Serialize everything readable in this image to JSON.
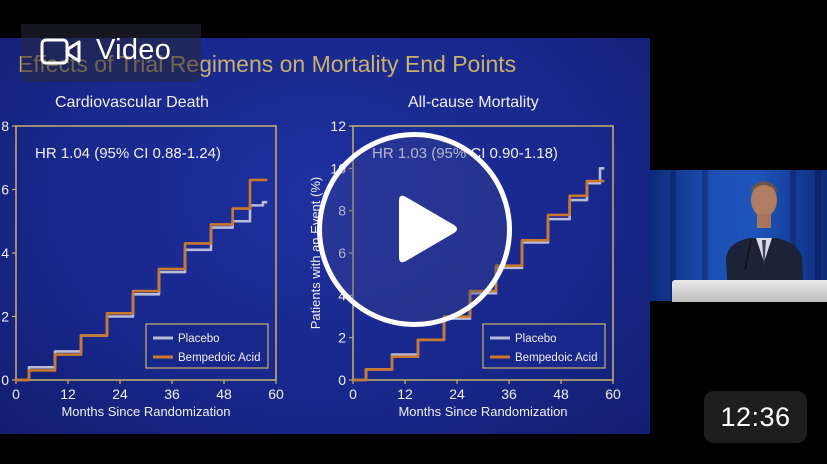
{
  "badge": {
    "label": "Video",
    "icon": "video-camera-icon"
  },
  "duration": "12:36",
  "slide": {
    "title": "Effects of Trial Regimens on Mortality End Points",
    "charts": [
      {
        "title": "Cardiovascular Death",
        "hr": "HR 1.04 (95% CI 0.88-1.24)",
        "ylabel": "",
        "xlabel": "Months Since Randomization",
        "yticks": [
          "8",
          "6",
          "4",
          "2",
          "0"
        ],
        "xticks": [
          "0",
          "12",
          "24",
          "36",
          "48",
          "60"
        ],
        "legend": [
          "Placebo",
          "Bempedoic Acid"
        ]
      },
      {
        "title": "All-cause Mortality",
        "hr": "HR 1.03 (95% CI 0.90-1.18)",
        "ylabel": "Patients with an Event (%)",
        "xlabel": "Months Since Randomization",
        "yticks": [
          "12",
          "10",
          "8",
          "6",
          "4",
          "2",
          "0"
        ],
        "xticks": [
          "0",
          "12",
          "24",
          "36",
          "48",
          "60"
        ],
        "legend": [
          "Placebo",
          "Bempedoic Acid"
        ]
      }
    ]
  },
  "chart_data": [
    {
      "type": "line",
      "title": "Cardiovascular Death",
      "xlabel": "Months Since Randomization",
      "ylabel": "",
      "xlim": [
        0,
        60
      ],
      "ylim": [
        0,
        8
      ],
      "series": [
        {
          "name": "Placebo",
          "color": "#b8bcd8",
          "x": [
            0,
            6,
            12,
            18,
            24,
            30,
            36,
            42,
            48,
            52,
            56,
            58
          ],
          "y": [
            0,
            0.4,
            0.9,
            1.4,
            2.0,
            2.7,
            3.4,
            4.1,
            4.8,
            5.0,
            5.5,
            5.6
          ]
        },
        {
          "name": "Bempedoic Acid",
          "color": "#c9782c",
          "x": [
            0,
            6,
            12,
            18,
            24,
            30,
            36,
            42,
            48,
            52,
            56,
            58
          ],
          "y": [
            0,
            0.3,
            0.8,
            1.4,
            2.1,
            2.8,
            3.5,
            4.3,
            4.9,
            5.4,
            6.3,
            6.3
          ]
        }
      ]
    },
    {
      "type": "line",
      "title": "All-cause Mortality",
      "xlabel": "Months Since Randomization",
      "ylabel": "Patients with an Event (%)",
      "xlim": [
        0,
        60
      ],
      "ylim": [
        0,
        12
      ],
      "series": [
        {
          "name": "Placebo",
          "color": "#b8bcd8",
          "x": [
            0,
            6,
            12,
            18,
            24,
            30,
            36,
            42,
            48,
            52,
            56,
            58
          ],
          "y": [
            0,
            0.5,
            1.2,
            1.9,
            2.9,
            4.1,
            5.3,
            6.5,
            7.6,
            8.5,
            9.3,
            10.0
          ]
        },
        {
          "name": "Bempedoic Acid",
          "color": "#c9782c",
          "x": [
            0,
            6,
            12,
            18,
            24,
            30,
            36,
            42,
            48,
            52,
            56,
            58
          ],
          "y": [
            0,
            0.5,
            1.1,
            1.9,
            3.0,
            4.2,
            5.4,
            6.6,
            7.8,
            8.7,
            9.4,
            9.4
          ]
        }
      ]
    }
  ]
}
